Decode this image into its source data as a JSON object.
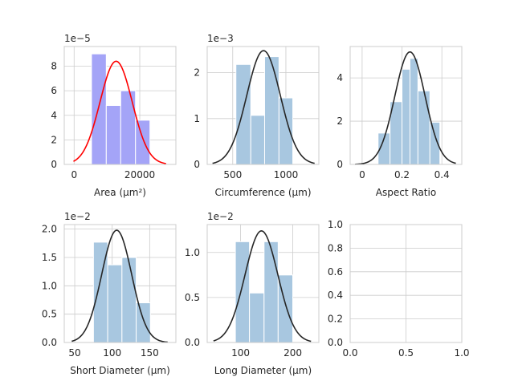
{
  "chart_data": [
    {
      "type": "bar",
      "xlabel": "Area (μm²)",
      "offset_text": "1e−5",
      "xlim": [
        -3000,
        31000
      ],
      "ylim": [
        0,
        9.6
      ],
      "xticks": [
        0,
        20000
      ],
      "yticks": [
        0,
        2,
        4,
        6,
        8
      ],
      "bar_color": "#a4a4f7",
      "curve_color": "#ff0000",
      "bins": [
        {
          "x0": 5300,
          "x1": 9800,
          "y": 9.0
        },
        {
          "x0": 9800,
          "x1": 14200,
          "y": 4.8
        },
        {
          "x0": 14200,
          "x1": 18700,
          "y": 6.0
        },
        {
          "x0": 18700,
          "x1": 23100,
          "y": 3.6
        }
      ],
      "curve": {
        "mean": 12800,
        "sd": 4900,
        "peak": 8.4,
        "from": -200,
        "to": 28000
      }
    },
    {
      "type": "bar",
      "xlabel": "Circumference (μm)",
      "offset_text": "1e−3",
      "xlim": [
        260,
        1310
      ],
      "ylim": [
        0,
        2.57
      ],
      "xticks": [
        500,
        1000
      ],
      "yticks": [
        0,
        1,
        2
      ],
      "bar_color": "#a8c7e0",
      "curve_color": "#262626",
      "bins": [
        {
          "x0": 530,
          "x1": 670,
          "y": 2.18
        },
        {
          "x0": 670,
          "x1": 800,
          "y": 1.07
        },
        {
          "x0": 800,
          "x1": 935,
          "y": 2.35
        },
        {
          "x0": 935,
          "x1": 1065,
          "y": 1.45
        }
      ],
      "curve": {
        "mean": 790,
        "sd": 158,
        "peak": 2.48,
        "from": 310,
        "to": 1270
      }
    },
    {
      "type": "bar",
      "xlabel": "Aspect Ratio",
      "offset_text": "",
      "xlim": [
        -0.06,
        0.5
      ],
      "ylim": [
        0,
        5.45
      ],
      "xticks": [
        0.0,
        0.2,
        0.4
      ],
      "yticks": [
        0,
        2,
        4
      ],
      "bar_color": "#a8c7e0",
      "curve_color": "#262626",
      "bins": [
        {
          "x0": 0.08,
          "x1": 0.14,
          "y": 1.45
        },
        {
          "x0": 0.14,
          "x1": 0.2,
          "y": 2.9
        },
        {
          "x0": 0.2,
          "x1": 0.24,
          "y": 4.4
        },
        {
          "x0": 0.24,
          "x1": 0.28,
          "y": 4.9
        },
        {
          "x0": 0.28,
          "x1": 0.34,
          "y": 3.4
        },
        {
          "x0": 0.34,
          "x1": 0.39,
          "y": 1.95
        }
      ],
      "curve": {
        "mean": 0.24,
        "sd": 0.076,
        "peak": 5.2,
        "from": -0.035,
        "to": 0.47
      }
    },
    {
      "type": "bar",
      "xlabel": "Short Diameter (μm)",
      "offset_text": "1e−2",
      "xlim": [
        36,
        185
      ],
      "ylim": [
        0,
        2.08
      ],
      "xticks": [
        50,
        100,
        150
      ],
      "yticks": [
        "0.0",
        "0.5",
        "1.0",
        "1.5",
        "2.0"
      ],
      "yticks_values": [
        0,
        0.5,
        1.0,
        1.5,
        2.0
      ],
      "bar_color": "#a8c7e0",
      "curve_color": "#262626",
      "bins": [
        {
          "x0": 75,
          "x1": 94,
          "y": 1.77
        },
        {
          "x0": 94,
          "x1": 113,
          "y": 1.37
        },
        {
          "x0": 113,
          "x1": 132,
          "y": 1.5
        },
        {
          "x0": 132,
          "x1": 151,
          "y": 0.7
        }
      ],
      "curve": {
        "mean": 106,
        "sd": 20,
        "peak": 1.98,
        "from": 46,
        "to": 174
      }
    },
    {
      "type": "bar",
      "xlabel": "Long Diameter (μm)",
      "offset_text": "1e−2",
      "xlim": [
        36,
        250
      ],
      "ylim": [
        0,
        1.31
      ],
      "xticks": [
        100,
        200
      ],
      "yticks": [
        "0.0",
        "0.5",
        "1.0"
      ],
      "yticks_values": [
        0,
        0.5,
        1.0
      ],
      "bar_color": "#a8c7e0",
      "curve_color": "#262626",
      "bins": [
        {
          "x0": 90,
          "x1": 117,
          "y": 1.12
        },
        {
          "x0": 117,
          "x1": 145,
          "y": 0.55
        },
        {
          "x0": 145,
          "x1": 172,
          "y": 1.12
        },
        {
          "x0": 172,
          "x1": 200,
          "y": 0.75
        }
      ],
      "curve": {
        "mean": 140,
        "sd": 31.5,
        "peak": 1.24,
        "from": 48,
        "to": 235
      }
    },
    {
      "type": "empty",
      "xlabel": "",
      "offset_text": "",
      "xlim": [
        0,
        1
      ],
      "ylim": [
        0,
        1
      ],
      "xticks": [
        "0.0",
        "0.5",
        "1.0"
      ],
      "xticks_values": [
        0,
        0.5,
        1.0
      ],
      "yticks": [
        "0.0",
        "0.2",
        "0.4",
        "0.6",
        "0.8",
        "1.0"
      ],
      "yticks_values": [
        0,
        0.2,
        0.4,
        0.6,
        0.8,
        1.0
      ],
      "bins": []
    }
  ]
}
